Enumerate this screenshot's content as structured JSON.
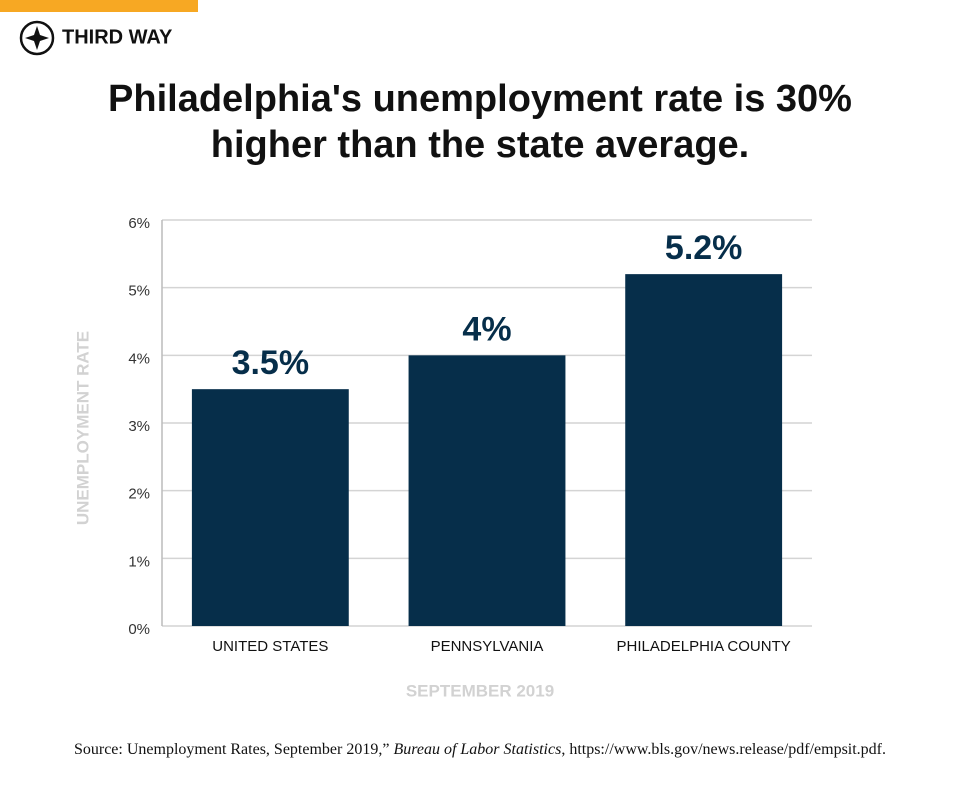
{
  "header": {
    "brand": "THIRD WAY"
  },
  "chart_data": {
    "type": "bar",
    "title": "Philadelphia's unemployment rate is 30% higher than the state average.",
    "y_label": "UNEMPLOYMENT RATE",
    "x_label": "SEPTEMBER 2019",
    "categories": [
      "UNITED STATES",
      "PENNSYLVANIA",
      "PHILADELPHIA COUNTY"
    ],
    "values": [
      3.5,
      4,
      5.2
    ],
    "value_labels": [
      "3.5%",
      "4%",
      "5.2%"
    ],
    "color": "#062e4a",
    "ylim": [
      0,
      6
    ],
    "yticks": [
      {
        "value": 0,
        "label": "0%"
      },
      {
        "value": 1,
        "label": "1%"
      },
      {
        "value": 2,
        "label": "2%"
      },
      {
        "value": 3,
        "label": "3%"
      },
      {
        "value": 4,
        "label": "4%"
      },
      {
        "value": 5,
        "label": "5%"
      },
      {
        "value": 6,
        "label": "6%"
      }
    ],
    "grid": true,
    "source": [
      "Source: Unemployment Rates, September 2019,” ",
      "Bureau of Labor Statistics",
      ", https://www.bls.gov/news.release/pdf/empsit.pdf."
    ]
  }
}
